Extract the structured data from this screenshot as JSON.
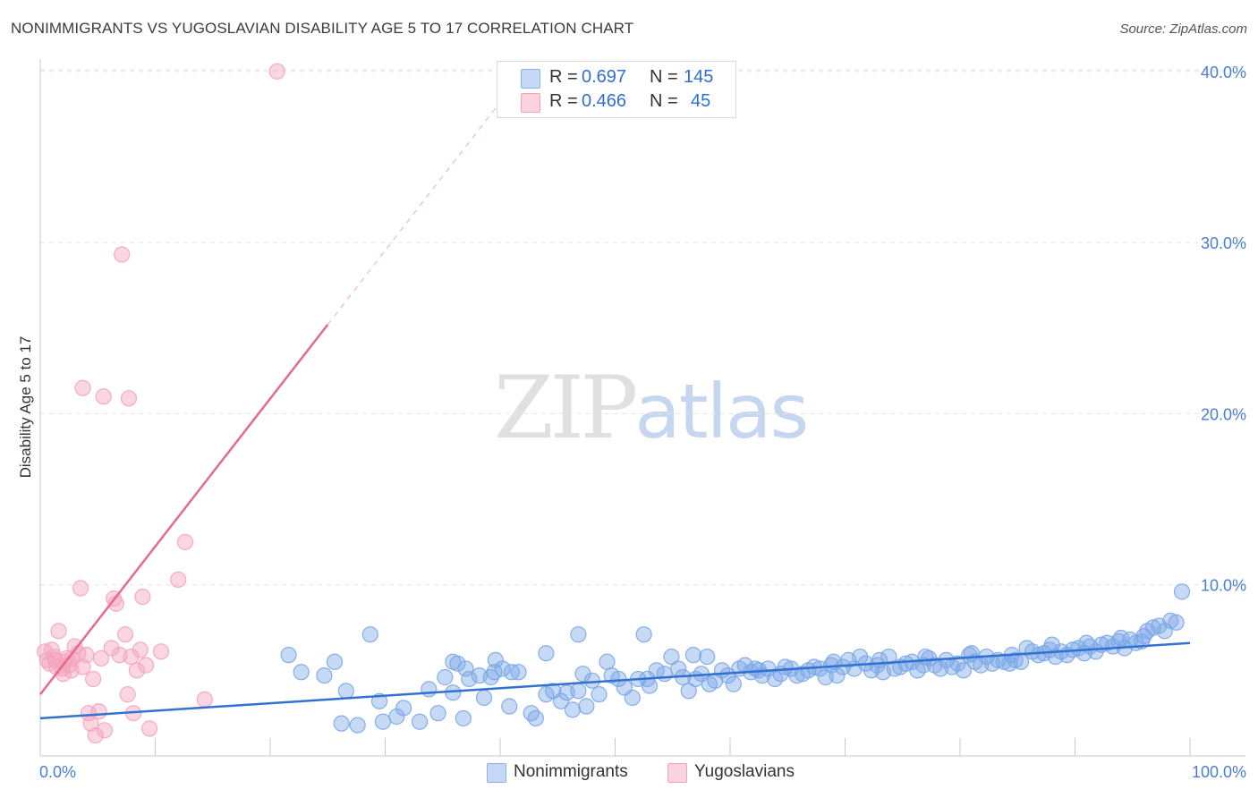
{
  "title": "NONIMMIGRANTS VS YUGOSLAVIAN DISABILITY AGE 5 TO 17 CORRELATION CHART",
  "source": "Source: ZipAtlas.com",
  "watermark": {
    "zip": "ZIP",
    "atlas": "atlas"
  },
  "legend_stats": [
    {
      "r_label": "R =",
      "r_value": "0.697",
      "n_label": "N =",
      "n_value": "145",
      "color": "#a9c6f0"
    },
    {
      "r_label": "R =",
      "r_value": "0.466",
      "n_label": "N =",
      "n_value": "45",
      "color": "#f6b8c8"
    }
  ],
  "chart_data": {
    "type": "scatter",
    "title": "NONIMMIGRANTS VS YUGOSLAVIAN DISABILITY AGE 5 TO 17 CORRELATION CHART",
    "xlabel": "",
    "ylabel": "Disability Age 5 to 17",
    "xlim": [
      0,
      100
    ],
    "ylim": [
      0,
      40.5
    ],
    "x_tick_labels": [
      "0.0%",
      "100.0%"
    ],
    "y_ticks": [
      10,
      20,
      30,
      40
    ],
    "y_tick_labels": [
      "10.0%",
      "20.0%",
      "30.0%",
      "40.0%"
    ],
    "grid": true,
    "legend_position": "bottom",
    "series": [
      {
        "name": "Nonimmigrants",
        "color": "#7aa6e6",
        "line_color": "#3371d1",
        "trend": {
          "x": [
            0,
            100
          ],
          "y": [
            2.2,
            6.6
          ]
        },
        "points": [
          [
            21.6,
            5.9
          ],
          [
            22.7,
            4.9
          ],
          [
            24.7,
            4.7
          ],
          [
            25.6,
            5.5
          ],
          [
            26.6,
            3.8
          ],
          [
            26.2,
            1.9
          ],
          [
            27.6,
            1.8
          ],
          [
            28.7,
            7.1
          ],
          [
            29.5,
            3.2
          ],
          [
            29.8,
            2.0
          ],
          [
            31.0,
            2.3
          ],
          [
            31.6,
            2.8
          ],
          [
            33.0,
            2.0
          ],
          [
            33.8,
            3.9
          ],
          [
            34.6,
            2.5
          ],
          [
            35.2,
            4.6
          ],
          [
            35.9,
            3.7
          ],
          [
            36.3,
            5.4
          ],
          [
            36.8,
            2.2
          ],
          [
            37.3,
            4.5
          ],
          [
            38.2,
            4.7
          ],
          [
            38.6,
            3.4
          ],
          [
            39.2,
            4.6
          ],
          [
            39.6,
            5.6
          ],
          [
            40.2,
            5.1
          ],
          [
            40.8,
            2.9
          ],
          [
            41.0,
            4.9
          ],
          [
            41.6,
            4.9
          ],
          [
            42.7,
            2.5
          ],
          [
            43.1,
            2.2
          ],
          [
            44.0,
            3.6
          ],
          [
            44.6,
            3.8
          ],
          [
            45.3,
            3.2
          ],
          [
            45.8,
            3.7
          ],
          [
            46.3,
            2.7
          ],
          [
            46.8,
            3.8
          ],
          [
            47.5,
            2.9
          ],
          [
            48.0,
            4.4
          ],
          [
            48.6,
            3.6
          ],
          [
            49.3,
            5.5
          ],
          [
            49.7,
            4.7
          ],
          [
            50.3,
            4.5
          ],
          [
            50.8,
            4.0
          ],
          [
            51.5,
            3.4
          ],
          [
            52.0,
            4.5
          ],
          [
            52.5,
            7.1
          ],
          [
            53.0,
            4.1
          ],
          [
            53.6,
            5.0
          ],
          [
            54.3,
            4.8
          ],
          [
            54.9,
            5.8
          ],
          [
            55.5,
            5.1
          ],
          [
            55.9,
            4.6
          ],
          [
            56.4,
            3.8
          ],
          [
            57.0,
            4.5
          ],
          [
            57.5,
            4.8
          ],
          [
            58.2,
            4.2
          ],
          [
            58.7,
            4.4
          ],
          [
            59.3,
            5.0
          ],
          [
            59.8,
            4.7
          ],
          [
            60.3,
            4.2
          ],
          [
            60.8,
            5.1
          ],
          [
            61.3,
            5.3
          ],
          [
            61.8,
            4.9
          ],
          [
            62.2,
            5.1
          ],
          [
            62.8,
            4.7
          ],
          [
            63.3,
            5.1
          ],
          [
            63.9,
            4.5
          ],
          [
            64.4,
            4.8
          ],
          [
            64.8,
            5.2
          ],
          [
            65.3,
            5.1
          ],
          [
            65.8,
            4.7
          ],
          [
            66.3,
            4.8
          ],
          [
            66.8,
            5.0
          ],
          [
            67.3,
            5.2
          ],
          [
            67.8,
            5.1
          ],
          [
            68.3,
            4.6
          ],
          [
            68.8,
            5.3
          ],
          [
            69.3,
            4.7
          ],
          [
            69.8,
            5.2
          ],
          [
            70.3,
            5.6
          ],
          [
            70.8,
            5.1
          ],
          [
            71.3,
            5.8
          ],
          [
            71.8,
            5.4
          ],
          [
            72.3,
            5.0
          ],
          [
            72.8,
            5.3
          ],
          [
            73.3,
            4.9
          ],
          [
            73.8,
            5.8
          ],
          [
            74.3,
            5.1
          ],
          [
            74.8,
            5.2
          ],
          [
            75.3,
            5.4
          ],
          [
            75.8,
            5.5
          ],
          [
            76.3,
            5.0
          ],
          [
            76.8,
            5.3
          ],
          [
            77.3,
            5.7
          ],
          [
            77.8,
            5.3
          ],
          [
            78.3,
            5.1
          ],
          [
            78.8,
            5.6
          ],
          [
            79.3,
            5.2
          ],
          [
            79.8,
            5.4
          ],
          [
            80.3,
            5.0
          ],
          [
            80.8,
            5.9
          ],
          [
            81.3,
            5.5
          ],
          [
            81.8,
            5.3
          ],
          [
            82.3,
            5.8
          ],
          [
            82.8,
            5.4
          ],
          [
            83.3,
            5.6
          ],
          [
            83.8,
            5.5
          ],
          [
            84.3,
            5.4
          ],
          [
            84.8,
            5.6
          ],
          [
            85.3,
            5.5
          ],
          [
            85.8,
            6.3
          ],
          [
            86.3,
            6.1
          ],
          [
            86.8,
            5.9
          ],
          [
            87.3,
            6.0
          ],
          [
            87.8,
            6.2
          ],
          [
            88.3,
            5.8
          ],
          [
            88.8,
            6.1
          ],
          [
            89.3,
            5.9
          ],
          [
            89.8,
            6.2
          ],
          [
            90.3,
            6.3
          ],
          [
            90.8,
            6.0
          ],
          [
            91.3,
            6.4
          ],
          [
            91.8,
            6.1
          ],
          [
            92.3,
            6.5
          ],
          [
            92.8,
            6.6
          ],
          [
            93.3,
            6.4
          ],
          [
            93.8,
            6.7
          ],
          [
            94.3,
            6.3
          ],
          [
            94.8,
            6.8
          ],
          [
            95.3,
            6.6
          ],
          [
            95.8,
            6.7
          ],
          [
            96.3,
            7.3
          ],
          [
            96.8,
            7.5
          ],
          [
            97.3,
            7.6
          ],
          [
            97.8,
            7.3
          ],
          [
            98.3,
            7.9
          ],
          [
            98.8,
            7.8
          ],
          [
            99.3,
            9.6
          ],
          [
            58.0,
            5.8
          ],
          [
            56.8,
            5.9
          ],
          [
            46.8,
            7.1
          ],
          [
            47.2,
            4.8
          ],
          [
            44.0,
            6.0
          ],
          [
            37.0,
            5.1
          ],
          [
            35.9,
            5.5
          ],
          [
            39.5,
            4.9
          ],
          [
            52.8,
            4.5
          ],
          [
            62.5,
            5.0
          ],
          [
            69.0,
            5.5
          ],
          [
            73.0,
            5.6
          ],
          [
            77.0,
            5.8
          ],
          [
            81.0,
            6.0
          ],
          [
            84.5,
            5.9
          ],
          [
            88.0,
            6.5
          ],
          [
            91.0,
            6.6
          ],
          [
            94.0,
            6.9
          ],
          [
            96.0,
            7.0
          ]
        ]
      },
      {
        "name": "Yugoslavians",
        "color": "#f4a4bc",
        "line_color": "#e46a92",
        "trend": {
          "x": [
            0,
            25
          ],
          "y": [
            3.6,
            25.2
          ]
        },
        "trend_dashed": {
          "x": [
            25,
            41.5
          ],
          "y": [
            25.2,
            39.5
          ]
        },
        "points": [
          [
            0.4,
            6.1
          ],
          [
            0.6,
            5.6
          ],
          [
            0.8,
            5.4
          ],
          [
            1.0,
            6.2
          ],
          [
            1.2,
            5.8
          ],
          [
            1.4,
            5.2
          ],
          [
            1.6,
            7.3
          ],
          [
            1.9,
            5.1
          ],
          [
            2.1,
            5.5
          ],
          [
            2.3,
            5.7
          ],
          [
            2.5,
            5.3
          ],
          [
            2.7,
            5.0
          ],
          [
            2.8,
            5.7
          ],
          [
            3.0,
            6.4
          ],
          [
            3.3,
            6.0
          ],
          [
            3.5,
            9.8
          ],
          [
            3.7,
            5.2
          ],
          [
            4.0,
            5.9
          ],
          [
            4.2,
            2.5
          ],
          [
            4.4,
            1.9
          ],
          [
            4.6,
            4.5
          ],
          [
            4.8,
            1.2
          ],
          [
            5.1,
            2.6
          ],
          [
            5.3,
            5.7
          ],
          [
            5.6,
            1.5
          ],
          [
            6.2,
            6.3
          ],
          [
            6.4,
            9.2
          ],
          [
            6.6,
            8.9
          ],
          [
            6.9,
            5.9
          ],
          [
            7.1,
            29.3
          ],
          [
            7.4,
            7.1
          ],
          [
            7.6,
            3.6
          ],
          [
            7.9,
            5.8
          ],
          [
            8.1,
            2.5
          ],
          [
            8.4,
            5.0
          ],
          [
            8.7,
            6.2
          ],
          [
            8.9,
            9.3
          ],
          [
            9.2,
            5.3
          ],
          [
            9.5,
            1.6
          ],
          [
            10.5,
            6.1
          ],
          [
            12.0,
            10.3
          ],
          [
            12.6,
            12.5
          ],
          [
            14.3,
            3.3
          ],
          [
            20.6,
            40.0
          ],
          [
            3.7,
            21.5
          ],
          [
            5.5,
            21.0
          ],
          [
            7.7,
            20.9
          ],
          [
            1.3,
            5.6
          ],
          [
            2.0,
            4.8
          ]
        ]
      }
    ]
  }
}
